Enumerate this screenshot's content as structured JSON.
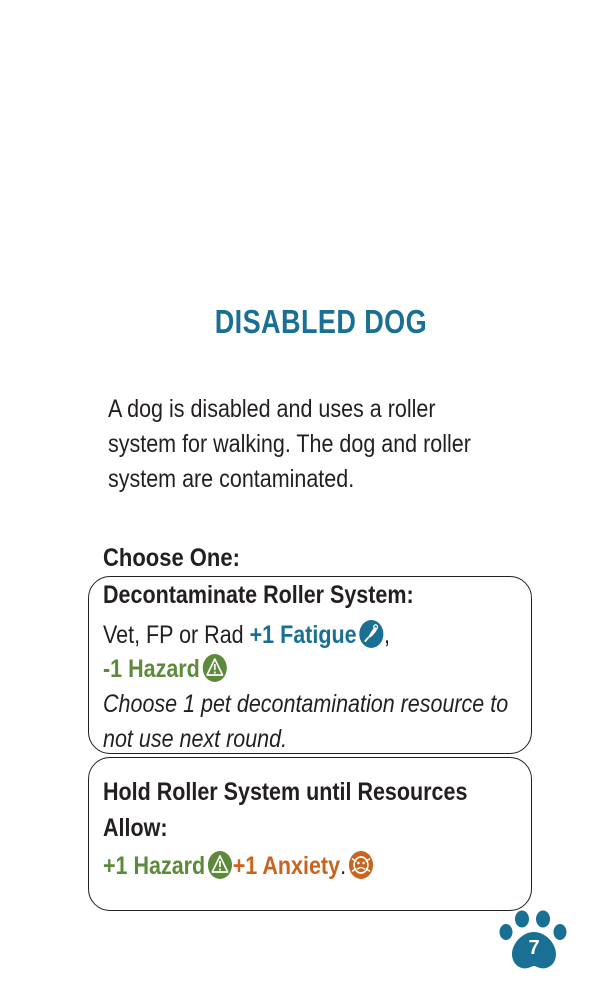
{
  "card": {
    "title": "DISABLED DOG",
    "description": "A dog is disabled and uses a roller system for walking. The dog and roller system are contaminated.",
    "choose_label": "Choose One:",
    "page_number": "7",
    "colors": {
      "title": "#1a6f95",
      "fatigue": "#1a6f95",
      "hazard": "#5d8a3a",
      "anxiety": "#c9641f",
      "paw": "#1a6f95"
    }
  },
  "option1": {
    "heading": "Decontaminate Roller System:",
    "roles": "Vet, FP  or Rad",
    "fatigue": "+1 Fatigue",
    "comma": ",",
    "hazard": "-1 Hazard",
    "note_line1": "Choose 1 pet decontamination resource to",
    "note_line2": "not use next round.",
    "fatigue_icon": "helper-hand-icon",
    "hazard_icon": "warning-icon"
  },
  "option2": {
    "heading_line1": "Hold Roller System until Resources",
    "heading_line2": "Allow:",
    "hazard": "+1 Hazard",
    "anxiety": "+1 Anxiety",
    "period": ".",
    "hazard_icon": "warning-icon",
    "anxiety_icon": "anxiety-face-icon"
  }
}
